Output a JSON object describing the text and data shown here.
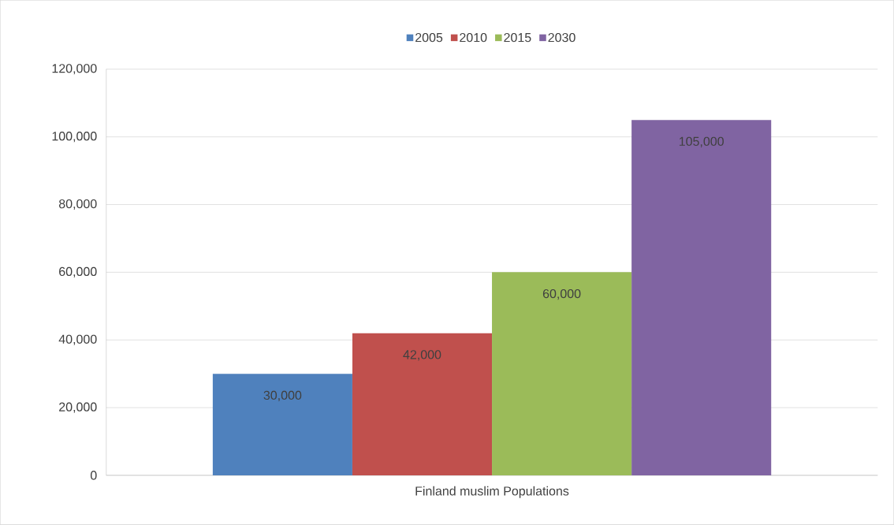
{
  "chart_data": {
    "type": "bar",
    "categories": [
      "Finland muslim Populations"
    ],
    "series": [
      {
        "name": "2005",
        "color": "#4f81bd",
        "values": [
          30000
        ],
        "value_labels": [
          "30,000"
        ]
      },
      {
        "name": "2010",
        "color": "#c0504d",
        "values": [
          42000
        ],
        "value_labels": [
          "42,000"
        ]
      },
      {
        "name": "2015",
        "color": "#9bbb59",
        "values": [
          60000
        ],
        "value_labels": [
          "60,000"
        ]
      },
      {
        "name": "2030",
        "color": "#8064a2",
        "values": [
          105000
        ],
        "value_labels": [
          "105,000"
        ]
      }
    ],
    "ylim": [
      0,
      120000
    ],
    "yticks": [
      {
        "value": 0,
        "label": "0"
      },
      {
        "value": 20000,
        "label": "20,000"
      },
      {
        "value": 40000,
        "label": "40,000"
      },
      {
        "value": 60000,
        "label": "60,000"
      },
      {
        "value": 80000,
        "label": "80,000"
      },
      {
        "value": 100000,
        "label": "100,000"
      },
      {
        "value": 120000,
        "label": "120,000"
      }
    ],
    "grid": "y",
    "legend": "top"
  }
}
